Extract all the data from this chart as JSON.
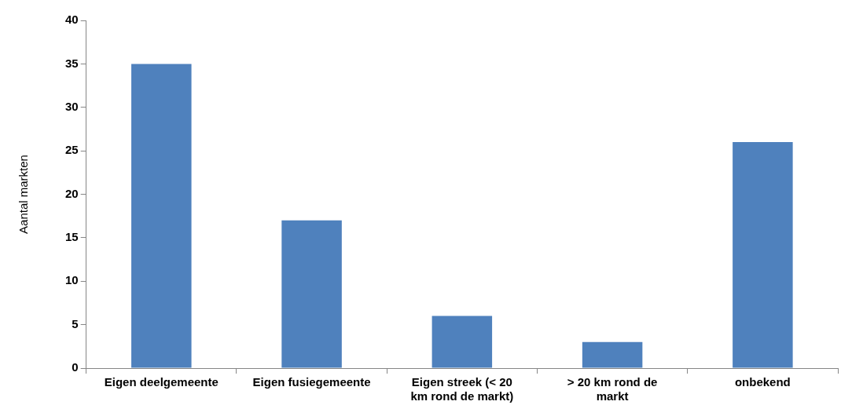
{
  "chart_data": {
    "type": "bar",
    "ylabel": "Aantal markten",
    "categories": [
      "Eigen deelgemeente",
      "Eigen fusiegemeente",
      "Eigen streek (< 20 km rond de markt)",
      "> 20 km rond de markt",
      "onbekend"
    ],
    "values": [
      35,
      17,
      6,
      3,
      26
    ],
    "color": "#4f81bd",
    "ylim": [
      0,
      40
    ],
    "yticks": [
      0,
      5,
      10,
      15,
      20,
      25,
      30,
      35,
      40
    ],
    "grid": false,
    "legend": false
  }
}
